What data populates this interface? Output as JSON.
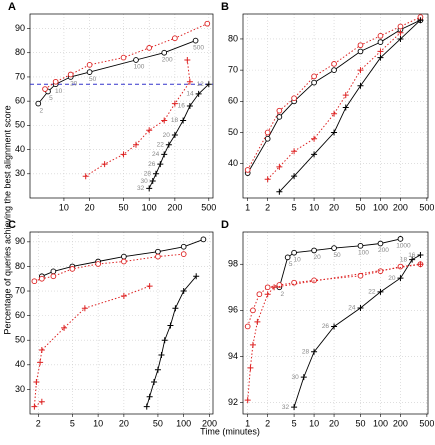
{
  "axis_labels": {
    "y": "Percentage of queries achieving the best alignment score",
    "x": "Time (minutes)"
  },
  "chart_data": [
    {
      "type": "line",
      "title": "A",
      "log_x": true,
      "grid": true,
      "xlim": [
        4,
        560
      ],
      "ylim": [
        20,
        96
      ],
      "xticks": [
        10,
        20,
        50,
        100,
        200,
        500
      ],
      "yticks": [
        30,
        40,
        50,
        60,
        70,
        80,
        90
      ],
      "hline": {
        "value": 67,
        "color": "#3333cc"
      },
      "series": [
        {
          "color": "#000000",
          "marker": "circle",
          "dash": false,
          "x": [
            5,
            6.5,
            8,
            12,
            20,
            70,
            150,
            350
          ],
          "values": [
            59,
            64,
            67,
            70,
            72,
            77,
            80,
            85
          ],
          "labels": [
            "2",
            "5",
            "10",
            "20",
            "50",
            "100",
            "200",
            "500"
          ]
        },
        {
          "color": "#dd2222",
          "marker": "circle",
          "dash": true,
          "x": [
            6,
            8,
            12,
            20,
            50,
            100,
            200,
            480
          ],
          "values": [
            65,
            68,
            71,
            75,
            78,
            82,
            86,
            92
          ]
        },
        {
          "color": "#000000",
          "marker": "plus",
          "dash": false,
          "x": [
            100,
            110,
            120,
            135,
            150,
            170,
            200,
            250,
            300,
            380,
            500
          ],
          "values": [
            24,
            27,
            30,
            34,
            38,
            42,
            46,
            52,
            58,
            63,
            67
          ],
          "labels": [
            "32",
            "30",
            "28",
            "26",
            "24",
            "22",
            "20",
            "18",
            "16",
            "14",
            "12"
          ]
        },
        {
          "color": "#dd2222",
          "marker": "plus",
          "dash": true,
          "x": [
            18,
            30,
            50,
            70,
            100,
            150,
            200,
            300,
            280
          ],
          "values": [
            29,
            34,
            38,
            42,
            48,
            52,
            59,
            68,
            77
          ]
        }
      ]
    },
    {
      "type": "line",
      "title": "B",
      "log_x": true,
      "grid": true,
      "xlim": [
        0.85,
        520
      ],
      "ylim": [
        29,
        88
      ],
      "xticks": [
        1,
        2,
        5,
        10,
        20,
        50,
        100,
        200,
        500
      ],
      "yticks": [
        40,
        50,
        60,
        70,
        80
      ],
      "series": [
        {
          "color": "#000000",
          "marker": "circle",
          "dash": false,
          "x": [
            1,
            2,
            3,
            5,
            10,
            20,
            50,
            100,
            200,
            400
          ],
          "values": [
            37,
            48,
            55,
            60,
            66,
            70,
            76,
            79,
            83,
            86
          ]
        },
        {
          "color": "#dd2222",
          "marker": "circle",
          "dash": true,
          "x": [
            1,
            2,
            3,
            5,
            10,
            20,
            50,
            100,
            200,
            400
          ],
          "values": [
            38,
            50,
            57,
            61,
            68,
            72,
            78,
            81,
            84,
            87
          ]
        },
        {
          "color": "#000000",
          "marker": "plus",
          "dash": false,
          "x": [
            3,
            5,
            10,
            20,
            30,
            50,
            100,
            200,
            400
          ],
          "values": [
            31,
            36,
            43,
            50,
            58,
            65,
            74,
            80,
            86
          ]
        },
        {
          "color": "#dd2222",
          "marker": "plus",
          "dash": true,
          "x": [
            2,
            3,
            5,
            10,
            20,
            30,
            50,
            100,
            200
          ],
          "values": [
            35,
            39,
            44,
            48,
            56,
            62,
            70,
            76,
            82
          ]
        }
      ]
    },
    {
      "type": "line",
      "title": "C",
      "log_x": true,
      "grid": true,
      "xlim": [
        1.6,
        220
      ],
      "ylim": [
        20,
        94
      ],
      "xticks": [
        2,
        5,
        10,
        20,
        50,
        100,
        200
      ],
      "yticks": [
        30,
        40,
        50,
        60,
        70,
        80,
        90
      ],
      "series": [
        {
          "color": "#000000",
          "marker": "circle",
          "dash": false,
          "x": [
            2.2,
            3,
            5,
            10,
            20,
            50,
            100,
            170
          ],
          "values": [
            76,
            78,
            80,
            82,
            84,
            86,
            88,
            91
          ]
        },
        {
          "color": "#dd2222",
          "marker": "circle",
          "dash": true,
          "x": [
            1.8,
            2.2,
            3,
            5,
            10,
            20,
            50,
            100
          ],
          "values": [
            74,
            75,
            76,
            79,
            81,
            82,
            84,
            85
          ]
        },
        {
          "color": "#000000",
          "marker": "plus",
          "dash": false,
          "x": [
            37,
            40,
            45,
            50,
            55,
            60,
            70,
            80,
            100,
            140
          ],
          "values": [
            23,
            27,
            33,
            38,
            44,
            50,
            56,
            63,
            70,
            76
          ]
        },
        {
          "color": "#dd2222",
          "marker": "plus",
          "dash": true,
          "x": [
            2.2,
            1.8,
            1.9,
            2.1,
            2.2,
            4,
            7,
            20,
            40
          ],
          "values": [
            25,
            23,
            33,
            41,
            46,
            55,
            63,
            68,
            72
          ]
        }
      ]
    },
    {
      "type": "line",
      "title": "D",
      "log_x": true,
      "grid": true,
      "xlim": [
        0.85,
        520
      ],
      "ylim": [
        91.5,
        99.4
      ],
      "xticks": [
        1,
        2,
        5,
        10,
        20,
        50,
        100,
        200,
        500
      ],
      "yticks": [
        92,
        94,
        96,
        98
      ],
      "series": [
        {
          "color": "#000000",
          "marker": "circle",
          "dash": false,
          "x": [
            3,
            4,
            5,
            10,
            20,
            50,
            100,
            200
          ],
          "values": [
            97,
            98.3,
            98.5,
            98.6,
            98.7,
            98.8,
            98.9,
            99.1
          ],
          "labels": [
            "2",
            "5",
            "10",
            "20",
            "50",
            "100",
            "200",
            "1000"
          ]
        },
        {
          "color": "#dd2222",
          "marker": "circle",
          "dash": true,
          "x": [
            1,
            1.2,
            1.5,
            2,
            3,
            5,
            10,
            50,
            100,
            200,
            400
          ],
          "values": [
            95.3,
            96,
            96.7,
            97,
            97.1,
            97.2,
            97.3,
            97.5,
            97.7,
            97.9,
            98
          ]
        },
        {
          "color": "#000000",
          "marker": "plus",
          "dash": false,
          "x": [
            5,
            7,
            10,
            20,
            50,
            100,
            200,
            300,
            400
          ],
          "values": [
            91.8,
            93.1,
            94.2,
            95.3,
            96.1,
            96.8,
            97.4,
            98.2,
            98.4
          ],
          "labels": [
            "32",
            "30",
            "28",
            "26",
            "24",
            "22",
            "20",
            "18",
            "16"
          ]
        },
        {
          "color": "#dd2222",
          "marker": "plus",
          "dash": true,
          "x": [
            1,
            1.1,
            1.2,
            1.4,
            2,
            2.5,
            400
          ],
          "values": [
            92.1,
            93.5,
            94.5,
            95.5,
            96.7,
            97,
            98
          ]
        }
      ]
    }
  ]
}
